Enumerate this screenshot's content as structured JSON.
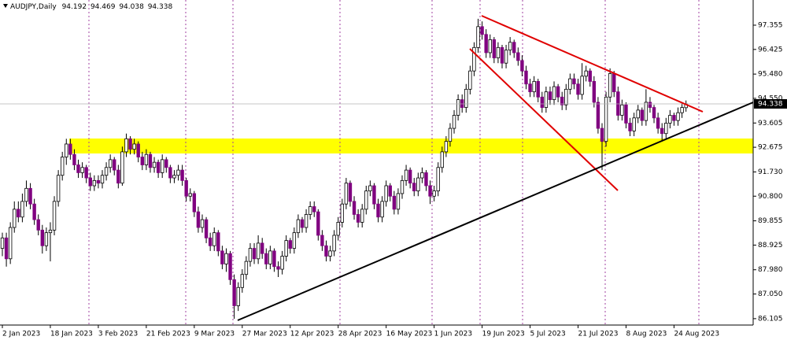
{
  "chart_data": {
    "type": "candlestick",
    "series": [
      {
        "name": "AUDJPY,Daily",
        "up_color": "#ffffff",
        "down_color": "#800080",
        "values": [
          [
            88.8,
            89.4,
            88.5,
            89.2
          ],
          [
            89.2,
            89.4,
            88.1,
            88.4
          ],
          [
            88.4,
            89.8,
            88.2,
            89.6
          ],
          [
            89.6,
            90.6,
            89.4,
            90.3
          ],
          [
            90.3,
            90.6,
            89.8,
            90.0
          ],
          [
            90.0,
            90.9,
            89.8,
            90.6
          ],
          [
            90.6,
            91.4,
            90.4,
            91.1
          ],
          [
            91.1,
            91.3,
            90.3,
            90.5
          ],
          [
            90.5,
            90.7,
            89.7,
            89.9
          ],
          [
            89.9,
            90.1,
            89.3,
            89.5
          ],
          [
            89.5,
            89.7,
            88.6,
            88.9
          ],
          [
            88.9,
            89.6,
            88.7,
            89.4
          ],
          [
            89.4,
            89.8,
            88.3,
            89.5
          ],
          [
            89.5,
            90.8,
            89.3,
            90.6
          ],
          [
            90.6,
            91.8,
            90.4,
            91.6
          ],
          [
            91.6,
            92.5,
            91.4,
            92.3
          ],
          [
            92.3,
            93.0,
            92.0,
            92.8
          ],
          [
            92.8,
            93.0,
            92.2,
            92.4
          ],
          [
            92.4,
            92.6,
            91.8,
            92.0
          ],
          [
            92.0,
            92.2,
            91.5,
            91.7
          ],
          [
            91.7,
            92.1,
            91.5,
            91.9
          ],
          [
            91.9,
            92.0,
            91.3,
            91.5
          ],
          [
            91.5,
            91.7,
            91.0,
            91.2
          ],
          [
            91.2,
            91.6,
            91.0,
            91.4
          ],
          [
            91.4,
            91.6,
            91.1,
            91.3
          ],
          [
            91.3,
            91.8,
            91.1,
            91.6
          ],
          [
            91.6,
            92.1,
            91.4,
            91.9
          ],
          [
            91.9,
            92.4,
            91.7,
            92.2
          ],
          [
            92.2,
            92.3,
            91.6,
            91.8
          ],
          [
            91.8,
            92.0,
            91.1,
            91.3
          ],
          [
            91.3,
            92.7,
            91.2,
            92.5
          ],
          [
            92.5,
            93.2,
            92.3,
            93.0
          ],
          [
            93.0,
            93.1,
            92.4,
            92.6
          ],
          [
            92.6,
            93.0,
            92.4,
            92.8
          ],
          [
            92.8,
            92.9,
            92.1,
            92.3
          ],
          [
            92.3,
            92.5,
            91.8,
            92.0
          ],
          [
            92.0,
            92.6,
            91.8,
            92.4
          ],
          [
            92.4,
            92.5,
            91.7,
            91.9
          ],
          [
            91.9,
            92.3,
            91.7,
            92.1
          ],
          [
            92.1,
            92.2,
            91.5,
            91.7
          ],
          [
            91.7,
            92.4,
            91.5,
            92.2
          ],
          [
            92.2,
            92.3,
            91.7,
            91.9
          ],
          [
            91.9,
            92.0,
            91.3,
            91.5
          ],
          [
            91.5,
            91.8,
            91.3,
            91.6
          ],
          [
            91.6,
            92.0,
            91.4,
            91.8
          ],
          [
            91.8,
            92.0,
            91.2,
            91.4
          ],
          [
            91.4,
            91.5,
            90.6,
            90.8
          ],
          [
            90.8,
            91.1,
            90.6,
            90.9
          ],
          [
            90.9,
            91.0,
            90.0,
            90.2
          ],
          [
            90.2,
            90.4,
            89.4,
            89.6
          ],
          [
            89.6,
            90.1,
            89.4,
            89.9
          ],
          [
            89.9,
            90.0,
            89.0,
            89.2
          ],
          [
            89.2,
            89.4,
            88.7,
            88.9
          ],
          [
            88.9,
            89.6,
            88.7,
            89.4
          ],
          [
            89.4,
            89.5,
            88.5,
            88.7
          ],
          [
            88.7,
            88.9,
            88.0,
            88.2
          ],
          [
            88.2,
            88.8,
            87.9,
            88.6
          ],
          [
            88.6,
            88.7,
            87.4,
            87.6
          ],
          [
            87.6,
            87.8,
            86.1,
            86.6
          ],
          [
            86.6,
            87.5,
            86.4,
            87.3
          ],
          [
            87.3,
            88.0,
            87.1,
            87.8
          ],
          [
            87.8,
            88.5,
            87.6,
            88.3
          ],
          [
            88.3,
            89.0,
            88.1,
            88.8
          ],
          [
            88.8,
            89.0,
            88.2,
            88.4
          ],
          [
            88.4,
            89.3,
            88.2,
            89.0
          ],
          [
            89.0,
            89.2,
            88.4,
            88.6
          ],
          [
            88.6,
            88.8,
            88.0,
            88.2
          ],
          [
            88.2,
            88.9,
            88.0,
            88.7
          ],
          [
            88.7,
            88.8,
            87.9,
            88.1
          ],
          [
            88.1,
            88.3,
            87.7,
            88.0
          ],
          [
            88.0,
            88.7,
            87.8,
            88.5
          ],
          [
            88.5,
            89.3,
            88.3,
            89.1
          ],
          [
            89.1,
            89.2,
            88.6,
            88.8
          ],
          [
            88.8,
            89.6,
            88.6,
            89.4
          ],
          [
            89.4,
            90.1,
            89.2,
            89.9
          ],
          [
            89.9,
            90.0,
            89.4,
            89.6
          ],
          [
            89.6,
            90.3,
            89.4,
            90.1
          ],
          [
            90.1,
            90.6,
            89.9,
            90.4
          ],
          [
            90.4,
            90.6,
            90.0,
            90.2
          ],
          [
            90.2,
            90.3,
            89.1,
            89.3
          ],
          [
            89.3,
            89.5,
            88.7,
            88.9
          ],
          [
            88.9,
            89.1,
            88.3,
            88.5
          ],
          [
            88.5,
            88.9,
            88.3,
            88.7
          ],
          [
            88.7,
            89.5,
            88.5,
            89.3
          ],
          [
            89.3,
            90.0,
            89.1,
            89.8
          ],
          [
            89.8,
            90.7,
            89.6,
            90.5
          ],
          [
            90.5,
            91.5,
            90.3,
            91.3
          ],
          [
            91.3,
            91.4,
            90.4,
            90.6
          ],
          [
            90.6,
            90.8,
            89.9,
            90.1
          ],
          [
            90.1,
            90.3,
            89.6,
            89.8
          ],
          [
            89.8,
            90.5,
            89.6,
            90.3
          ],
          [
            90.3,
            91.2,
            90.1,
            91.0
          ],
          [
            91.0,
            91.4,
            90.8,
            91.2
          ],
          [
            91.2,
            91.3,
            90.3,
            90.5
          ],
          [
            90.5,
            90.7,
            89.8,
            90.0
          ],
          [
            90.0,
            90.8,
            89.8,
            90.6
          ],
          [
            90.6,
            91.4,
            90.4,
            91.2
          ],
          [
            91.2,
            91.3,
            90.6,
            90.8
          ],
          [
            90.8,
            91.0,
            90.1,
            90.3
          ],
          [
            90.3,
            91.1,
            90.1,
            90.9
          ],
          [
            90.9,
            91.6,
            90.7,
            91.4
          ],
          [
            91.4,
            92.0,
            91.2,
            91.8
          ],
          [
            91.8,
            91.9,
            91.1,
            91.3
          ],
          [
            91.3,
            91.5,
            90.8,
            91.0
          ],
          [
            91.0,
            91.7,
            90.8,
            91.5
          ],
          [
            91.5,
            91.9,
            91.3,
            91.7
          ],
          [
            91.7,
            91.8,
            91.0,
            91.2
          ],
          [
            91.2,
            91.4,
            90.5,
            90.8
          ],
          [
            90.8,
            91.2,
            90.6,
            91.0
          ],
          [
            91.0,
            92.1,
            90.8,
            91.9
          ],
          [
            91.9,
            92.7,
            91.7,
            92.5
          ],
          [
            92.5,
            93.1,
            92.3,
            92.9
          ],
          [
            92.9,
            93.6,
            92.7,
            93.4
          ],
          [
            93.4,
            94.1,
            93.2,
            93.9
          ],
          [
            93.9,
            94.7,
            93.7,
            94.5
          ],
          [
            94.5,
            94.7,
            94.0,
            94.2
          ],
          [
            94.2,
            95.1,
            94.0,
            94.9
          ],
          [
            94.9,
            95.8,
            94.7,
            95.6
          ],
          [
            95.6,
            96.7,
            95.4,
            96.5
          ],
          [
            96.5,
            97.6,
            96.3,
            97.3
          ],
          [
            97.3,
            97.5,
            96.8,
            97.0
          ],
          [
            97.0,
            97.2,
            96.1,
            96.3
          ],
          [
            96.3,
            97.0,
            96.1,
            96.8
          ],
          [
            96.8,
            96.9,
            95.9,
            96.1
          ],
          [
            96.1,
            96.7,
            95.9,
            96.5
          ],
          [
            96.5,
            96.6,
            95.7,
            95.9
          ],
          [
            95.9,
            96.6,
            95.7,
            96.4
          ],
          [
            96.4,
            96.9,
            96.2,
            96.7
          ],
          [
            96.7,
            96.8,
            96.1,
            96.3
          ],
          [
            96.3,
            96.5,
            95.8,
            96.0
          ],
          [
            96.0,
            96.2,
            95.4,
            95.6
          ],
          [
            95.6,
            95.8,
            94.9,
            95.1
          ],
          [
            95.1,
            95.3,
            94.6,
            94.8
          ],
          [
            94.8,
            95.4,
            94.6,
            95.2
          ],
          [
            95.2,
            95.3,
            94.4,
            94.6
          ],
          [
            94.6,
            94.8,
            94.0,
            94.2
          ],
          [
            94.2,
            95.0,
            94.0,
            94.8
          ],
          [
            94.8,
            95.0,
            94.3,
            94.5
          ],
          [
            94.5,
            95.2,
            94.3,
            95.0
          ],
          [
            95.0,
            95.1,
            94.4,
            94.6
          ],
          [
            94.6,
            94.8,
            94.1,
            94.3
          ],
          [
            94.3,
            95.1,
            94.1,
            94.9
          ],
          [
            94.9,
            95.5,
            94.7,
            95.3
          ],
          [
            95.3,
            95.5,
            94.9,
            95.1
          ],
          [
            95.1,
            95.3,
            94.5,
            94.7
          ],
          [
            94.7,
            95.9,
            94.5,
            95.4
          ],
          [
            95.4,
            95.8,
            95.2,
            95.6
          ],
          [
            95.6,
            95.7,
            95.0,
            95.2
          ],
          [
            95.2,
            95.4,
            94.2,
            94.4
          ],
          [
            94.4,
            94.6,
            93.2,
            93.4
          ],
          [
            93.4,
            93.6,
            91.8,
            92.9
          ],
          [
            92.9,
            94.8,
            92.7,
            94.6
          ],
          [
            94.6,
            95.7,
            94.4,
            95.5
          ],
          [
            95.5,
            95.6,
            94.6,
            94.8
          ],
          [
            94.8,
            95.0,
            93.7,
            93.9
          ],
          [
            93.9,
            94.5,
            93.7,
            94.3
          ],
          [
            94.3,
            94.4,
            93.4,
            93.6
          ],
          [
            93.6,
            93.8,
            93.1,
            93.3
          ],
          [
            93.3,
            94.0,
            93.1,
            93.8
          ],
          [
            93.8,
            94.3,
            93.6,
            94.1
          ],
          [
            94.1,
            94.2,
            93.5,
            93.7
          ],
          [
            93.7,
            94.9,
            93.5,
            94.4
          ],
          [
            94.4,
            94.6,
            94.0,
            94.2
          ],
          [
            94.2,
            94.3,
            93.6,
            93.8
          ],
          [
            93.8,
            94.0,
            93.2,
            93.4
          ],
          [
            93.4,
            93.6,
            92.9,
            93.2
          ],
          [
            93.2,
            93.8,
            93.0,
            93.6
          ],
          [
            93.6,
            94.1,
            93.4,
            93.9
          ],
          [
            93.9,
            94.0,
            93.5,
            93.7
          ],
          [
            93.7,
            94.2,
            93.5,
            94.0
          ],
          [
            94.0,
            94.4,
            93.8,
            94.2
          ],
          [
            94.192,
            94.469,
            94.038,
            94.338
          ]
        ]
      }
    ],
    "categories": [
      "2 Jan 2023",
      null,
      null,
      null,
      null,
      null,
      null,
      null,
      null,
      null,
      null,
      null,
      "18 Jan 2023",
      null,
      null,
      null,
      null,
      null,
      null,
      null,
      null,
      null,
      null,
      null,
      "3 Feb 2023",
      null,
      null,
      null,
      null,
      null,
      null,
      null,
      null,
      null,
      null,
      null,
      "21 Feb 2023",
      null,
      null,
      null,
      null,
      null,
      null,
      null,
      null,
      null,
      null,
      null,
      "9 Mar 2023",
      null,
      null,
      null,
      null,
      null,
      null,
      null,
      null,
      null,
      null,
      null,
      "27 Mar 2023",
      null,
      null,
      null,
      null,
      null,
      null,
      null,
      null,
      null,
      null,
      null,
      "12 Apr 2023",
      null,
      null,
      null,
      null,
      null,
      null,
      null,
      null,
      null,
      null,
      null,
      "28 Apr 2023",
      null,
      null,
      null,
      null,
      null,
      null,
      null,
      null,
      null,
      null,
      null,
      "16 May 2023",
      null,
      null,
      null,
      null,
      null,
      null,
      null,
      null,
      null,
      null,
      null,
      "1 Jun 2023",
      null,
      null,
      null,
      null,
      null,
      null,
      null,
      null,
      null,
      null,
      null,
      "19 Jun 2023",
      null,
      null,
      null,
      null,
      null,
      null,
      null,
      null,
      null,
      null,
      null,
      "5 Jul 2023",
      null,
      null,
      null,
      null,
      null,
      null,
      null,
      null,
      null,
      null,
      null,
      "21 Jul 2023",
      null,
      null,
      null,
      null,
      null,
      null,
      null,
      null,
      null,
      null,
      null,
      "8 Aug 2023",
      null,
      null,
      null,
      null,
      null,
      null,
      null,
      null,
      null,
      null,
      null,
      "24 Aug 2023",
      null,
      null,
      null
    ],
    "ylim": [
      85.86,
      98.32
    ],
    "yticks": [
      97.355,
      96.425,
      {
        "value": 95.48,
        "label": "95.480"
      },
      {
        "value": 94.55,
        "label": "94.550"
      },
      93.605,
      92.675,
      {
        "value": 91.73,
        "label": "91.730"
      },
      {
        "value": 90.8,
        "label": "90.800"
      },
      89.855,
      88.925,
      {
        "value": 87.98,
        "label": "87.980"
      },
      {
        "value": 87.05,
        "label": "87.050"
      },
      86.105
    ],
    "grid": false
  }
}
